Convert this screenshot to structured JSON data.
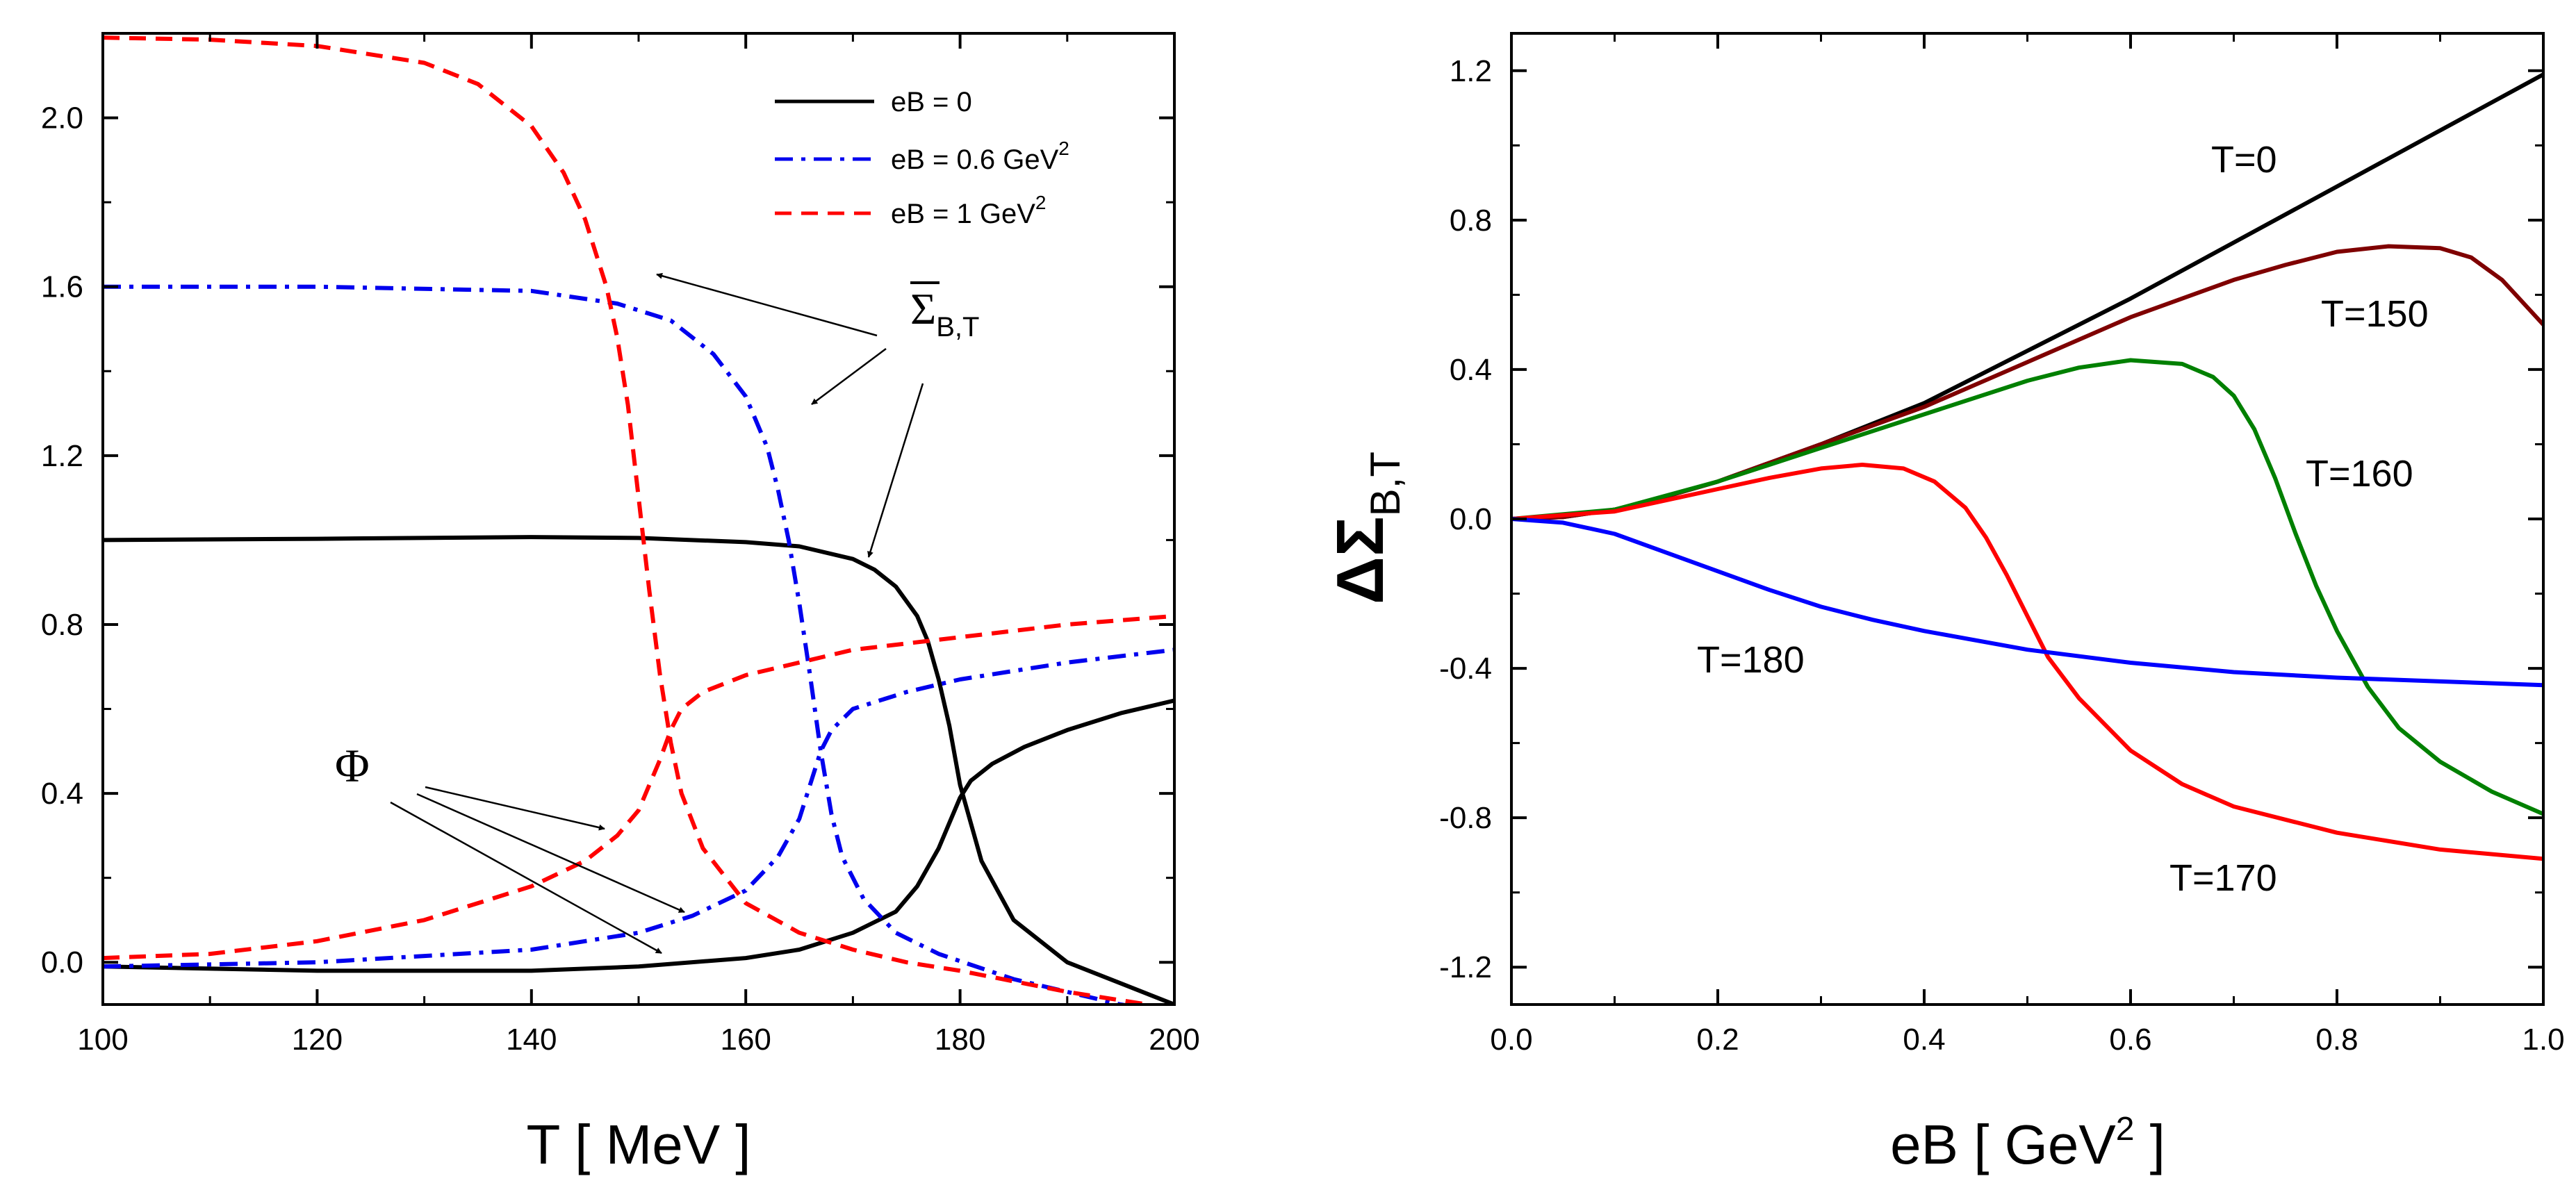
{
  "chart_data": [
    {
      "type": "line",
      "xlabel": "T  [ MeV ]",
      "ylabel": "",
      "xlim": [
        100,
        200
      ],
      "ylim": [
        -0.1,
        2.2
      ],
      "xticks": [
        "100",
        "120",
        "140",
        "160",
        "180",
        "200"
      ],
      "yticks": [
        "0.0",
        "0.4",
        "0.8",
        "1.2",
        "1.6",
        "2.0"
      ],
      "legend_position": "top-right",
      "legend": [
        {
          "label": "eB = 0",
          "sup": "",
          "color": "#000000",
          "dash": "solid"
        },
        {
          "label": "eB = 0.6 GeV",
          "sup": "2",
          "color": "#0000ee",
          "dash": "dashdot"
        },
        {
          "label": "eB = 1 GeV",
          "sup": "2",
          "color": "#ff0000",
          "dash": "dashed"
        }
      ],
      "annotation_sigma": {
        "main": "Σ",
        "sub": "B,T"
      },
      "annotation_phi": "Φ",
      "series": [
        {
          "name": "eB = 0",
          "quantity": "Σ",
          "color": "#000000",
          "dash": "solid",
          "x": [
            100,
            120,
            140,
            150,
            160,
            165,
            170,
            172,
            174,
            176,
            177,
            178,
            179,
            180,
            182,
            185,
            190,
            195,
            200
          ],
          "y": [
            1.0,
            1.003,
            1.007,
            1.005,
            0.995,
            0.985,
            0.955,
            0.93,
            0.89,
            0.82,
            0.76,
            0.67,
            0.56,
            0.42,
            0.24,
            0.1,
            0.0,
            -0.05,
            -0.1
          ]
        },
        {
          "name": "eB = 0",
          "quantity": "Φ",
          "color": "#000000",
          "dash": "solid",
          "x": [
            100,
            120,
            140,
            150,
            160,
            165,
            170,
            174,
            176,
            178,
            179,
            180,
            181,
            183,
            186,
            190,
            195,
            200
          ],
          "y": [
            -0.01,
            -0.02,
            -0.02,
            -0.01,
            0.01,
            0.03,
            0.07,
            0.12,
            0.18,
            0.27,
            0.33,
            0.39,
            0.43,
            0.47,
            0.51,
            0.55,
            0.59,
            0.62
          ]
        },
        {
          "name": "eB = 0.6 GeV²",
          "quantity": "Σ",
          "color": "#0000ee",
          "dash": "dashdot",
          "x": [
            100,
            120,
            140,
            148,
            153,
            157,
            160,
            162,
            163,
            164,
            165,
            166,
            167,
            168,
            169,
            171,
            174,
            178,
            185,
            190,
            195,
            200
          ],
          "y": [
            1.6,
            1.6,
            1.59,
            1.56,
            1.52,
            1.44,
            1.34,
            1.22,
            1.12,
            1.0,
            0.85,
            0.68,
            0.5,
            0.35,
            0.25,
            0.15,
            0.07,
            0.02,
            -0.04,
            -0.07,
            -0.1,
            -0.12
          ]
        },
        {
          "name": "eB = 0.6 GeV²",
          "quantity": "Φ",
          "color": "#0000ee",
          "dash": "dashdot",
          "x": [
            100,
            120,
            140,
            150,
            155,
            160,
            163,
            165,
            166,
            167,
            168,
            170,
            175,
            180,
            185,
            190,
            195,
            200
          ],
          "y": [
            -0.01,
            0.0,
            0.03,
            0.07,
            0.11,
            0.17,
            0.25,
            0.34,
            0.42,
            0.5,
            0.55,
            0.6,
            0.64,
            0.67,
            0.69,
            0.71,
            0.725,
            0.74
          ]
        },
        {
          "name": "eB = 1 GeV²",
          "quantity": "Σ",
          "color": "#ff0000",
          "dash": "dashed",
          "x": [
            100,
            110,
            120,
            130,
            135,
            140,
            143,
            145,
            147,
            148,
            149,
            150,
            151,
            152,
            153,
            154,
            156,
            160,
            165,
            170,
            175,
            180,
            190,
            200
          ],
          "y": [
            2.19,
            2.185,
            2.17,
            2.13,
            2.08,
            1.98,
            1.87,
            1.76,
            1.6,
            1.48,
            1.32,
            1.1,
            0.88,
            0.68,
            0.52,
            0.4,
            0.27,
            0.14,
            0.07,
            0.03,
            0.0,
            -0.02,
            -0.07,
            -0.11
          ]
        },
        {
          "name": "eB = 1 GeV²",
          "quantity": "Φ",
          "color": "#ff0000",
          "dash": "dashed",
          "x": [
            100,
            110,
            120,
            130,
            140,
            145,
            148,
            150,
            151,
            152,
            153,
            154,
            156,
            160,
            165,
            170,
            180,
            190,
            200
          ],
          "y": [
            0.01,
            0.02,
            0.05,
            0.1,
            0.18,
            0.24,
            0.3,
            0.36,
            0.42,
            0.48,
            0.55,
            0.6,
            0.64,
            0.68,
            0.71,
            0.74,
            0.77,
            0.8,
            0.82
          ]
        }
      ]
    },
    {
      "type": "line",
      "xlabel": "eB  [ GeV",
      "xlabel_sup": "2",
      "xlabel_end": " ]",
      "ylabel": "ΔΣ",
      "ylabel_sub": "B,T",
      "xlim": [
        0,
        1
      ],
      "ylim": [
        -1.3,
        1.3
      ],
      "xticks": [
        "0.0",
        "0.2",
        "0.4",
        "0.6",
        "0.8",
        "1.0"
      ],
      "yticks": [
        "-1.2",
        "-0.8",
        "-0.4",
        "0.0",
        "0.4",
        "0.8",
        "1.2"
      ],
      "series": [
        {
          "name": "T=0",
          "color": "#000000",
          "x": [
            0,
            0.05,
            0.1,
            0.15,
            0.2,
            0.25,
            0.3,
            0.35,
            0.4,
            0.5,
            0.6,
            0.7,
            0.8,
            0.9,
            1.0
          ],
          "y": [
            0,
            0.005,
            0.025,
            0.06,
            0.1,
            0.15,
            0.2,
            0.255,
            0.31,
            0.45,
            0.59,
            0.74,
            0.89,
            1.04,
            1.19
          ]
        },
        {
          "name": "T=150",
          "color": "#7f0000",
          "x": [
            0,
            0.05,
            0.1,
            0.15,
            0.2,
            0.25,
            0.3,
            0.35,
            0.4,
            0.5,
            0.6,
            0.7,
            0.75,
            0.8,
            0.85,
            0.9,
            0.93,
            0.96,
            1.0
          ],
          "y": [
            0,
            0.005,
            0.025,
            0.06,
            0.1,
            0.15,
            0.2,
            0.25,
            0.3,
            0.42,
            0.54,
            0.64,
            0.68,
            0.715,
            0.73,
            0.725,
            0.7,
            0.64,
            0.52
          ]
        },
        {
          "name": "T=160",
          "color": "#008000",
          "x": [
            0,
            0.1,
            0.2,
            0.3,
            0.4,
            0.5,
            0.55,
            0.6,
            0.65,
            0.68,
            0.7,
            0.72,
            0.74,
            0.76,
            0.78,
            0.8,
            0.83,
            0.86,
            0.9,
            0.95,
            1.0
          ],
          "y": [
            0,
            0.025,
            0.1,
            0.19,
            0.28,
            0.37,
            0.405,
            0.425,
            0.415,
            0.38,
            0.33,
            0.24,
            0.11,
            -0.04,
            -0.18,
            -0.3,
            -0.45,
            -0.56,
            -0.65,
            -0.73,
            -0.79
          ]
        },
        {
          "name": "T=170",
          "color": "#ff0000",
          "x": [
            0,
            0.1,
            0.2,
            0.25,
            0.3,
            0.34,
            0.38,
            0.41,
            0.44,
            0.46,
            0.48,
            0.5,
            0.52,
            0.55,
            0.6,
            0.65,
            0.7,
            0.8,
            0.9,
            1.0
          ],
          "y": [
            0,
            0.02,
            0.08,
            0.11,
            0.135,
            0.145,
            0.135,
            0.1,
            0.03,
            -0.05,
            -0.15,
            -0.26,
            -0.37,
            -0.48,
            -0.62,
            -0.71,
            -0.77,
            -0.84,
            -0.885,
            -0.91
          ]
        },
        {
          "name": "T=180",
          "color": "#0000ff",
          "x": [
            0,
            0.05,
            0.1,
            0.15,
            0.2,
            0.25,
            0.3,
            0.35,
            0.4,
            0.5,
            0.6,
            0.7,
            0.8,
            0.9,
            1.0
          ],
          "y": [
            0,
            -0.01,
            -0.04,
            -0.09,
            -0.14,
            -0.19,
            -0.235,
            -0.27,
            -0.3,
            -0.35,
            -0.385,
            -0.41,
            -0.425,
            -0.435,
            -0.445
          ]
        }
      ]
    }
  ]
}
